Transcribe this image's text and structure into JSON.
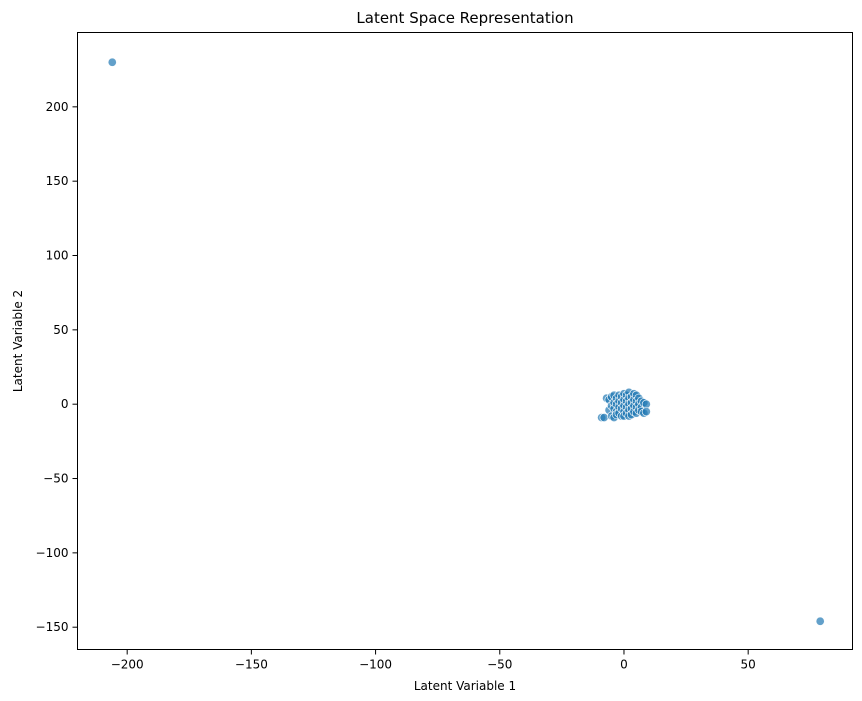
{
  "chart_data": {
    "type": "scatter",
    "title": "Latent Space Representation",
    "xlabel": "Latent Variable 1",
    "ylabel": "Latent Variable 2",
    "xlim": [
      -220,
      92
    ],
    "ylim": [
      -165,
      250
    ],
    "xticks": [
      -200,
      -150,
      -100,
      -50,
      0,
      50
    ],
    "yticks": [
      -150,
      -100,
      -50,
      0,
      50,
      100,
      150,
      200
    ],
    "grid": false,
    "legend": "none",
    "marker_color": "#1f77b4",
    "marker_alpha": 0.7,
    "marker_edge_color": "#ffffff",
    "series": [
      {
        "points": [
          [
            -206,
            230
          ],
          [
            79,
            -146
          ],
          [
            -9,
            -9
          ],
          [
            -8,
            -9
          ],
          [
            -7,
            4
          ],
          [
            -6,
            3
          ],
          [
            -6,
            -4
          ],
          [
            -5,
            5
          ],
          [
            -5,
            -1
          ],
          [
            -5,
            -8
          ],
          [
            -4,
            6
          ],
          [
            -4,
            1
          ],
          [
            -4,
            -3
          ],
          [
            -4,
            -9
          ],
          [
            -3,
            4
          ],
          [
            -3,
            0
          ],
          [
            -3,
            -5
          ],
          [
            -3,
            -7
          ],
          [
            -2,
            6
          ],
          [
            -2,
            2
          ],
          [
            -2,
            -2
          ],
          [
            -2,
            -6
          ],
          [
            -1,
            5
          ],
          [
            -1,
            1
          ],
          [
            -1,
            -3
          ],
          [
            -1,
            -8
          ],
          [
            0,
            7
          ],
          [
            0,
            3
          ],
          [
            0,
            -1
          ],
          [
            0,
            -5
          ],
          [
            0,
            -8
          ],
          [
            1,
            6
          ],
          [
            1,
            2
          ],
          [
            1,
            -2
          ],
          [
            1,
            -6
          ],
          [
            2,
            8
          ],
          [
            2,
            4
          ],
          [
            2,
            0
          ],
          [
            2,
            -4
          ],
          [
            2,
            -8
          ],
          [
            3,
            5
          ],
          [
            3,
            1
          ],
          [
            3,
            -3
          ],
          [
            3,
            -7
          ],
          [
            4,
            7
          ],
          [
            4,
            3
          ],
          [
            4,
            -1
          ],
          [
            4,
            -5
          ],
          [
            5,
            6
          ],
          [
            5,
            2
          ],
          [
            5,
            -2
          ],
          [
            5,
            -6
          ],
          [
            6,
            4
          ],
          [
            6,
            0
          ],
          [
            6,
            -4
          ],
          [
            7,
            2
          ],
          [
            7,
            -2
          ],
          [
            7,
            -5
          ],
          [
            8,
            1
          ],
          [
            8,
            -6
          ],
          [
            9,
            0
          ],
          [
            9,
            -5
          ]
        ]
      }
    ]
  }
}
